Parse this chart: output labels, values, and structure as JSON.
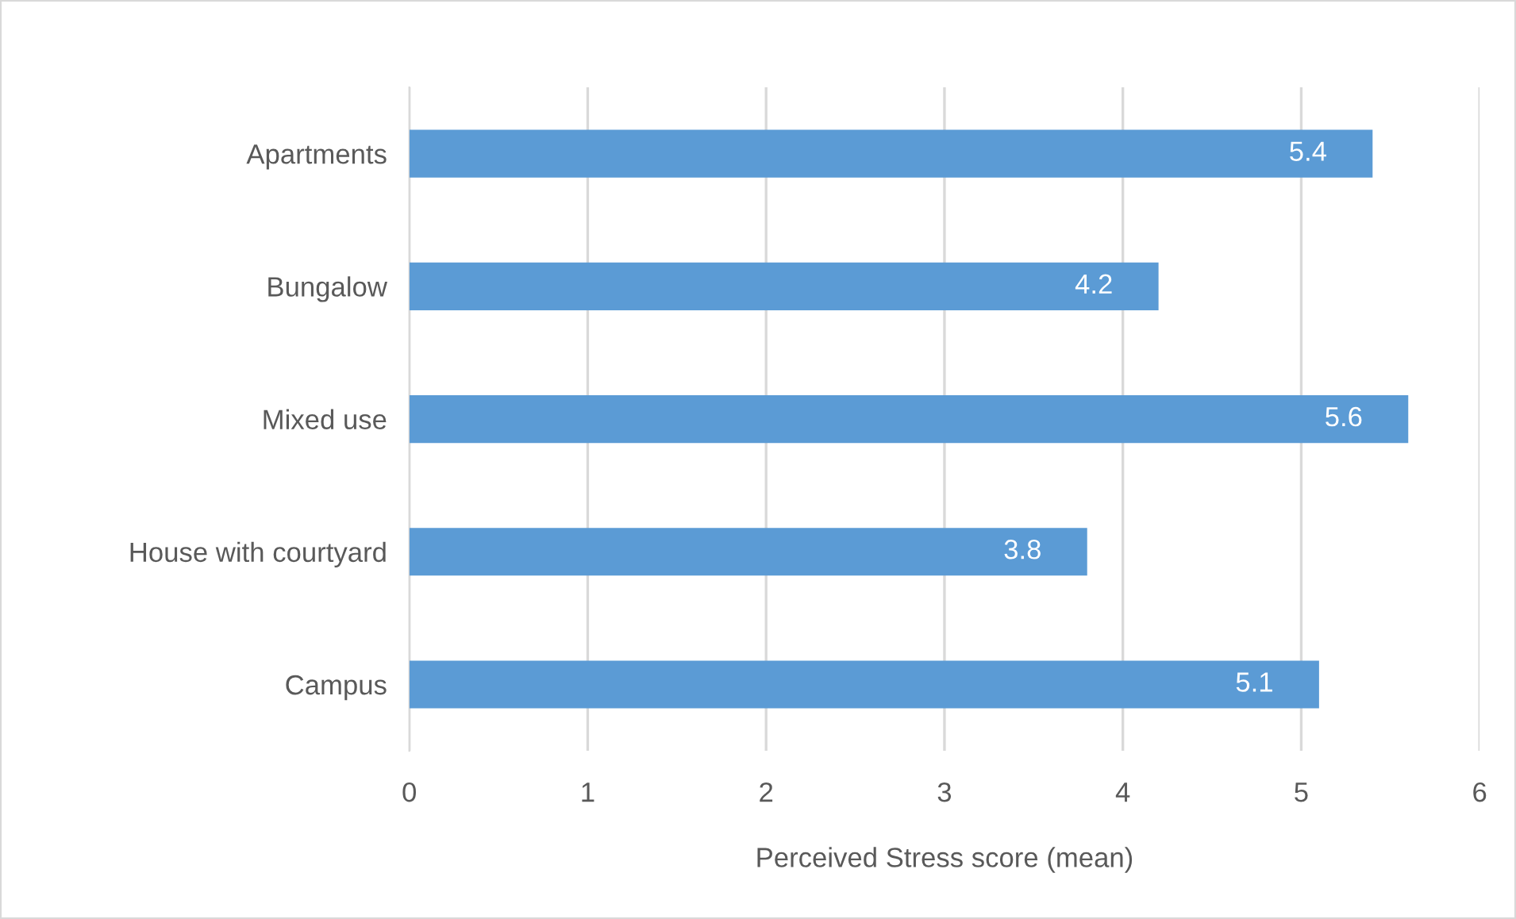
{
  "chart_data": {
    "type": "bar",
    "orientation": "horizontal",
    "xlabel": "Perceived Stress score (mean)",
    "categories": [
      "Apartments",
      "Bungalow",
      "Mixed use",
      "House with courtyard",
      "Campus"
    ],
    "values": [
      5.4,
      4.2,
      5.6,
      3.8,
      5.1
    ],
    "color": "#5b9bd5",
    "xlim": [
      0,
      6
    ],
    "xticks": [
      0,
      1,
      2,
      3,
      4,
      5,
      6
    ],
    "grid": "x",
    "data_labels": true
  }
}
